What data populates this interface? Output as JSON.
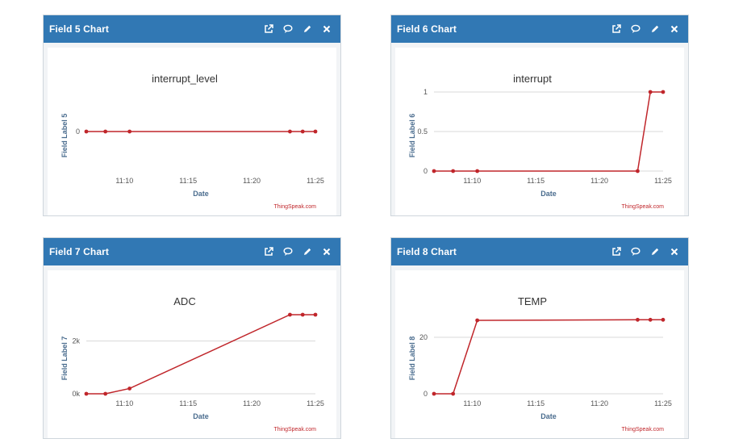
{
  "panels": [
    {
      "header": "Field 5 Chart",
      "chart_data": {
        "type": "line",
        "title": "interrupt_level",
        "xlabel": "Date",
        "ylabel": "Field Label 5",
        "x_ticks": [
          "11:10",
          "11:15",
          "11:20",
          "11:25"
        ],
        "y_ticks": [
          "0"
        ],
        "ylim": [
          -1,
          1
        ],
        "series": [
          {
            "x": [
              "11:07",
              "11:08.5",
              "11:10.4",
              "11:23",
              "11:24",
              "11:25"
            ],
            "values": [
              0,
              0,
              0,
              0,
              0,
              0
            ]
          }
        ],
        "credit": "ThingSpeak.com",
        "line_color": "#c0262b"
      }
    },
    {
      "header": "Field 6 Chart",
      "chart_data": {
        "type": "line",
        "title": "interrupt",
        "xlabel": "Date",
        "ylabel": "Field Label 6",
        "x_ticks": [
          "11:10",
          "11:15",
          "11:20",
          "11:25"
        ],
        "y_ticks": [
          "0",
          "0.5",
          "1"
        ],
        "ylim": [
          0,
          1
        ],
        "series": [
          {
            "x": [
              "11:07",
              "11:08.5",
              "11:10.4",
              "11:23",
              "11:24",
              "11:25"
            ],
            "values": [
              0,
              0,
              0,
              0,
              1,
              1
            ]
          }
        ],
        "credit": "ThingSpeak.com",
        "line_color": "#c0262b"
      }
    },
    {
      "header": "Field 7 Chart",
      "chart_data": {
        "type": "line",
        "title": "ADC",
        "xlabel": "Date",
        "ylabel": "Field Label 7",
        "x_ticks": [
          "11:10",
          "11:15",
          "11:20",
          "11:25"
        ],
        "y_ticks": [
          "0k",
          "2k"
        ],
        "ylim": [
          0,
          3000
        ],
        "series": [
          {
            "x": [
              "11:07",
              "11:08.5",
              "11:10.4",
              "11:23",
              "11:24",
              "11:25"
            ],
            "values": [
              0,
              0,
              200,
              3000,
              3000,
              3000
            ]
          }
        ],
        "credit": "ThingSpeak.com",
        "line_color": "#c0262b"
      }
    },
    {
      "header": "Field 8 Chart",
      "chart_data": {
        "type": "line",
        "title": "TEMP",
        "xlabel": "Date",
        "ylabel": "Field Label 8",
        "x_ticks": [
          "11:10",
          "11:15",
          "11:20",
          "11:25"
        ],
        "y_ticks": [
          "0",
          "20"
        ],
        "ylim": [
          0,
          28
        ],
        "series": [
          {
            "x": [
              "11:07",
              "11:08.5",
              "11:10.4",
              "11:23",
              "11:24",
              "11:25"
            ],
            "values": [
              0,
              0,
              26,
              26.2,
              26.2,
              26.2
            ]
          }
        ],
        "credit": "ThingSpeak.com",
        "line_color": "#c0262b"
      }
    }
  ],
  "header_icons": [
    "external-link-icon",
    "comment-icon",
    "pencil-icon",
    "close-icon"
  ],
  "colors": {
    "header_bg": "#3178b4",
    "line": "#c0262b",
    "grid": "#d8d8d8"
  }
}
